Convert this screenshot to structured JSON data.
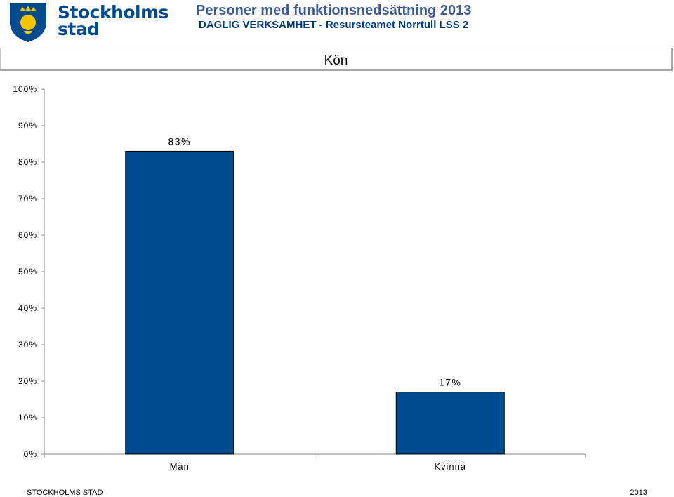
{
  "header": {
    "logo_line1": "Stockholms",
    "logo_line2": "stad",
    "title": "Personer med funktionsnedsättning 2013",
    "subtitle": "DAGLIG VERKSAMHET - Resursteamet Norrtull LSS 2"
  },
  "chart_data": {
    "type": "bar",
    "title": "Kön",
    "categories": [
      "Man",
      "Kvinna"
    ],
    "values": [
      83,
      17
    ],
    "value_labels": [
      "83%",
      "17%"
    ],
    "ylim": [
      0,
      100
    ],
    "yticks": [
      "0%",
      "10%",
      "20%",
      "30%",
      "40%",
      "50%",
      "60%",
      "70%",
      "80%",
      "90%",
      "100%"
    ],
    "grid": false,
    "legend": "none",
    "bar_color": "#004b8d"
  },
  "footer": {
    "left": "STOCKHOLMS STAD",
    "right": "2013"
  }
}
